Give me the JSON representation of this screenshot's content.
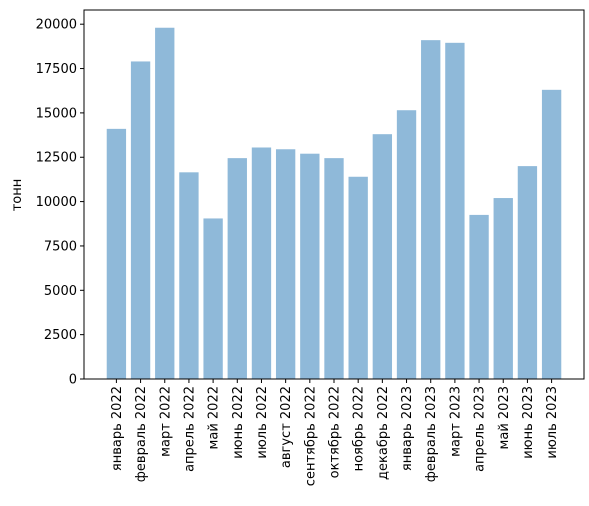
{
  "chart_data": {
    "type": "bar",
    "title": "",
    "xlabel": "",
    "ylabel": "тонн",
    "ylim": [
      0,
      20800
    ],
    "y_ticks": [
      0,
      2500,
      5000,
      7500,
      10000,
      12500,
      15000,
      17500,
      20000
    ],
    "grid": false,
    "bar_color": "#8fb9d9",
    "categories": [
      "январь 2022",
      "февраль 2022",
      "март 2022",
      "апрель 2022",
      "май 2022",
      "июнь 2022",
      "июль 2022",
      "август 2022",
      "сентябрь 2022",
      "октябрь 2022",
      "ноябрь 2022",
      "декабрь 2022",
      "январь 2023",
      "февраль 2023",
      "март 2023",
      "апрель 2023",
      "май 2023",
      "июнь 2023",
      "июль 2023"
    ],
    "values": [
      14100,
      17900,
      19800,
      11650,
      9050,
      12450,
      13050,
      12950,
      12700,
      12450,
      11400,
      13800,
      15150,
      19100,
      18950,
      9250,
      10200,
      12000,
      16300
    ]
  }
}
